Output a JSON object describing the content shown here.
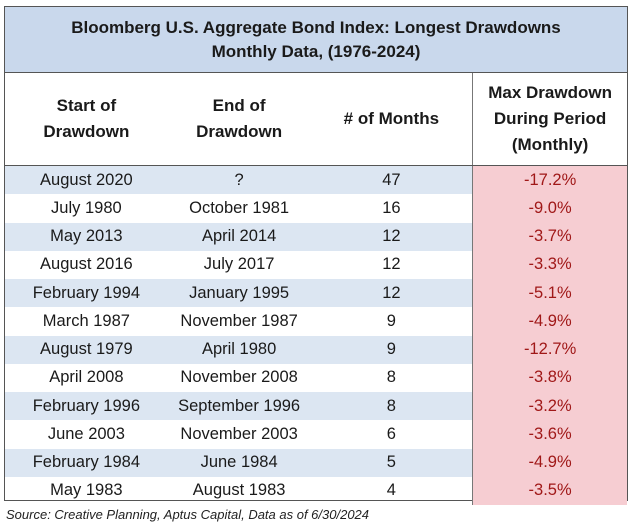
{
  "chart_data": {
    "type": "table",
    "title_line1": "Bloomberg U.S. Aggregate Bond Index: Longest Drawdowns",
    "title_line2": "Monthly Data, (1976-2024)",
    "headers": {
      "start": [
        "Start of",
        "Drawdown"
      ],
      "end": [
        "End of",
        "Drawdown"
      ],
      "months": [
        "# of Months"
      ],
      "max": [
        "Max Drawdown",
        "During Period",
        "(Monthly)"
      ]
    },
    "rows": [
      {
        "start": "August 2020",
        "end": "?",
        "months": "47",
        "max": "-17.2%"
      },
      {
        "start": "July 1980",
        "end": "October 1981",
        "months": "16",
        "max": "-9.0%"
      },
      {
        "start": "May 2013",
        "end": "April 2014",
        "months": "12",
        "max": "-3.7%"
      },
      {
        "start": "August 2016",
        "end": "July 2017",
        "months": "12",
        "max": "-3.3%"
      },
      {
        "start": "February 1994",
        "end": "January 1995",
        "months": "12",
        "max": "-5.1%"
      },
      {
        "start": "March 1987",
        "end": "November 1987",
        "months": "9",
        "max": "-4.9%"
      },
      {
        "start": "August 1979",
        "end": "April 1980",
        "months": "9",
        "max": "-12.7%"
      },
      {
        "start": "April 2008",
        "end": "November 2008",
        "months": "8",
        "max": "-3.8%"
      },
      {
        "start": "February 1996",
        "end": "September 1996",
        "months": "8",
        "max": "-3.2%"
      },
      {
        "start": "June 2003",
        "end": "November 2003",
        "months": "6",
        "max": "-3.6%"
      },
      {
        "start": "February 1984",
        "end": "June 1984",
        "months": "5",
        "max": "-4.9%"
      },
      {
        "start": "May 1983",
        "end": "August 1983",
        "months": "4",
        "max": "-3.5%"
      }
    ],
    "source": "Source: Creative Planning, Aptus Capital, Data as of 6/30/2024",
    "colors": {
      "title_bg": "#c9d8ec",
      "stripe_bg": "#dce6f2",
      "drawdown_bg": "#f6cdd2",
      "drawdown_text": "#a01818"
    }
  }
}
